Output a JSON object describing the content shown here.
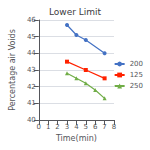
{
  "chart_data": {
    "type": "line",
    "title": "Lower Limit",
    "xlabel": "Time(min)",
    "ylabel": "Percentage air Voids",
    "xlim": [
      0,
      8
    ],
    "ylim": [
      40,
      46
    ],
    "xticks": [
      0,
      1,
      2,
      3,
      4,
      5,
      6,
      7,
      8
    ],
    "yticks": [
      40,
      41,
      42,
      43,
      44,
      45,
      46
    ],
    "grid": "y",
    "legend": "right",
    "series": [
      {
        "name": "200",
        "color": "#4472C4",
        "marker": "circle",
        "x": [
          3,
          4,
          5,
          7
        ],
        "values": [
          45.7,
          45.1,
          44.8,
          44.0
        ]
      },
      {
        "name": "125",
        "color": "#FF2200",
        "marker": "square",
        "x": [
          3,
          5,
          7
        ],
        "values": [
          43.5,
          43.0,
          42.5
        ]
      },
      {
        "name": "250",
        "color": "#70AD47",
        "marker": "triangle",
        "x": [
          3,
          4,
          5,
          6,
          7
        ],
        "values": [
          42.8,
          42.5,
          42.2,
          41.8,
          41.3
        ]
      }
    ]
  }
}
